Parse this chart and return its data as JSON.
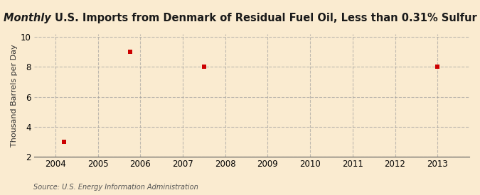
{
  "title_italic": "Monthly ",
  "title_rest": "U.S. Imports from Denmark of Residual Fuel Oil, Less than 0.31% Sulfur",
  "ylabel": "Thousand Barrels per Day",
  "source": "Source: U.S. Energy Information Administration",
  "x_data": [
    2004.2,
    2005.75,
    2007.5,
    2013.0
  ],
  "y_data": [
    3,
    9,
    8,
    8
  ],
  "marker_color": "#cc0000",
  "marker_size": 4,
  "background_color": "#faebd0",
  "xlim": [
    2003.5,
    2013.75
  ],
  "ylim": [
    2,
    10.2
  ],
  "yticks": [
    2,
    4,
    6,
    8,
    10
  ],
  "xticks": [
    2004,
    2005,
    2006,
    2007,
    2008,
    2009,
    2010,
    2011,
    2012,
    2013
  ],
  "grid_color": "#999999",
  "grid_style": "--",
  "grid_alpha": 0.6,
  "title_fontsize": 10.5,
  "tick_fontsize": 8.5,
  "ylabel_fontsize": 8
}
